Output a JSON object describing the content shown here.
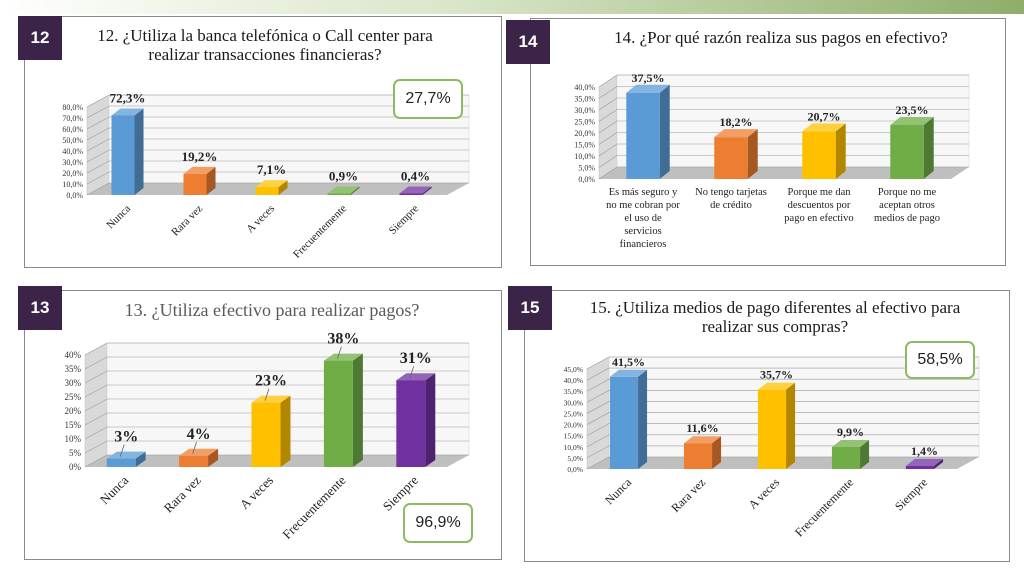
{
  "chart_data": [
    {
      "id": "12",
      "type": "bar",
      "title": "12. ¿Utiliza la banca telefónica o Call center para realizar transacciones financieras?",
      "categories": [
        "Nunca",
        "Rara vez",
        "A veces",
        "Frecuentemente",
        "Siempre"
      ],
      "values": [
        72.3,
        19.2,
        7.1,
        0.9,
        0.4
      ],
      "value_labels": [
        "72,3%",
        "19,2%",
        "7,1%",
        "0,9%",
        "0,4%"
      ],
      "yticks": [
        "0,0%",
        "10,0%",
        "20,0%",
        "30,0%",
        "40,0%",
        "50,0%",
        "60,0%",
        "70,0%",
        "80,0%"
      ],
      "ylim": [
        0,
        80
      ],
      "colors": [
        "#5b9bd5",
        "#ed7d31",
        "#ffc000",
        "#70ad47",
        "#7030a0"
      ],
      "callout": "27,7%"
    },
    {
      "id": "13",
      "type": "bar",
      "title": "13. ¿Utiliza efectivo para realizar pagos?",
      "categories": [
        "Nunca",
        "Rara vez",
        "A veces",
        "Frecuentemente",
        "Siempre"
      ],
      "values": [
        3,
        4,
        23,
        38,
        31
      ],
      "value_labels": [
        "3%",
        "4%",
        "23%",
        "38%",
        "31%"
      ],
      "yticks": [
        "0%",
        "5%",
        "10%",
        "15%",
        "20%",
        "25%",
        "30%",
        "35%",
        "40%"
      ],
      "ylim": [
        0,
        40
      ],
      "colors": [
        "#5b9bd5",
        "#ed7d31",
        "#ffc000",
        "#70ad47",
        "#7030a0"
      ],
      "callout": "96,9%"
    },
    {
      "id": "14",
      "type": "bar",
      "title": "14. ¿Por qué razón realiza sus pagos en efectivo?",
      "categories": [
        "Es más seguro y no me cobran por el uso de servicios financieros",
        "No tengo tarjetas de crédito",
        "Porque me dan descuentos por pago en efectivo",
        "Porque no me aceptan otros medios de pago"
      ],
      "category_lines": [
        [
          "Es más seguro y",
          "no me cobran por",
          "el uso de",
          "servicios",
          "financieros"
        ],
        [
          "No tengo tarjetas",
          "de crédito"
        ],
        [
          "Porque me dan",
          "descuentos por",
          "pago en efectivo"
        ],
        [
          "Porque no me",
          "aceptan otros",
          "medios de pago"
        ]
      ],
      "values": [
        37.5,
        18.2,
        20.7,
        23.5
      ],
      "value_labels": [
        "37,5%",
        "18,2%",
        "20,7%",
        "23,5%"
      ],
      "yticks": [
        "0,0%",
        "5,0%",
        "10,0%",
        "15,0%",
        "20,0%",
        "25,0%",
        "30,0%",
        "35,0%",
        "40,0%"
      ],
      "ylim": [
        0,
        40
      ],
      "colors": [
        "#5b9bd5",
        "#ed7d31",
        "#ffc000",
        "#70ad47"
      ]
    },
    {
      "id": "15",
      "type": "bar",
      "title": "15. ¿Utiliza medios de pago diferentes al efectivo para realizar sus compras?",
      "categories": [
        "Nunca",
        "Rara vez",
        "A veces",
        "Frecuentemente",
        "Siempre"
      ],
      "values": [
        41.5,
        11.6,
        35.7,
        9.9,
        1.4
      ],
      "value_labels": [
        "41,5%",
        "11,6%",
        "35,7%",
        "9,9%",
        "1,4%"
      ],
      "yticks": [
        "0,0%",
        "5,0%",
        "10,0%",
        "15,0%",
        "20,0%",
        "25,0%",
        "30,0%",
        "35,0%",
        "40,0%",
        "45,0%"
      ],
      "ylim": [
        0,
        45
      ],
      "colors": [
        "#5b9bd5",
        "#ed7d31",
        "#ffc000",
        "#70ad47",
        "#7030a0"
      ],
      "callout": "58,5%"
    }
  ]
}
